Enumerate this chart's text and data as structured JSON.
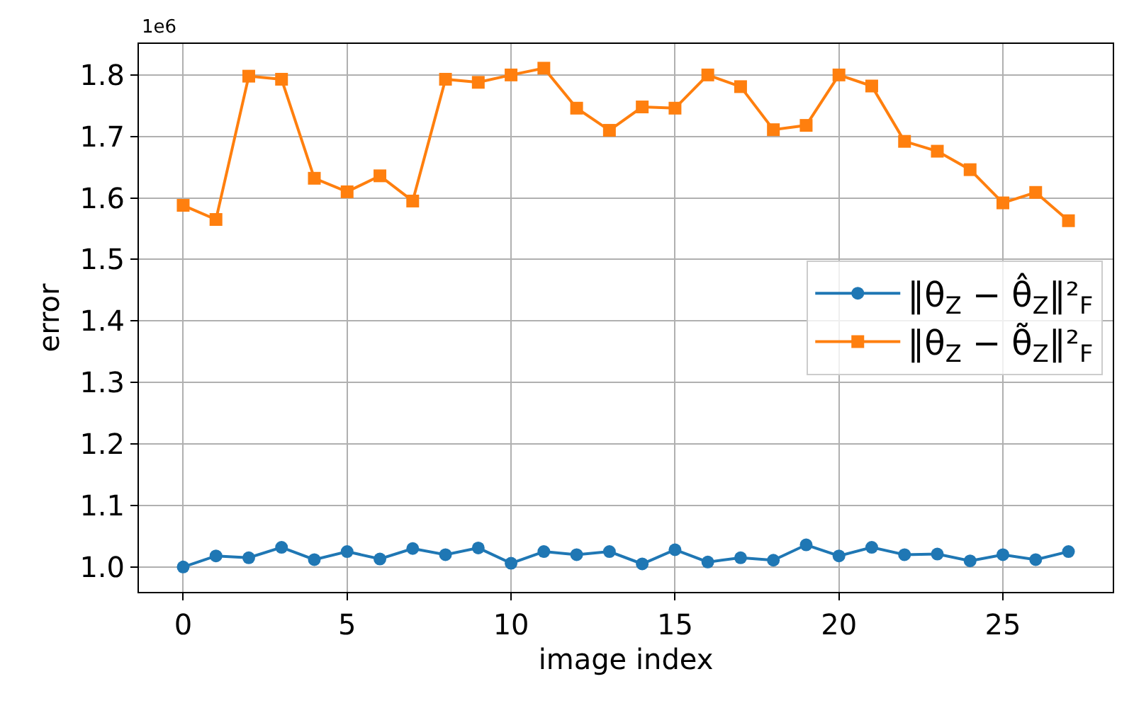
{
  "chart_data": {
    "type": "line",
    "xlabel": "image index",
    "ylabel": "error",
    "annotations": [
      "1e6"
    ],
    "x": [
      0,
      1,
      2,
      3,
      4,
      5,
      6,
      7,
      8,
      9,
      10,
      11,
      12,
      13,
      14,
      15,
      16,
      17,
      18,
      19,
      20,
      21,
      22,
      23,
      24,
      25,
      26,
      27
    ],
    "series": [
      {
        "name": "‖θ$_{Z}$ − θ̂$_{Z}$‖²$_{F}$",
        "color": "#1f77b4",
        "marker": "circle",
        "values": [
          1.0,
          1.018,
          1.015,
          1.032,
          1.012,
          1.025,
          1.013,
          1.03,
          1.02,
          1.031,
          1.006,
          1.025,
          1.02,
          1.025,
          1.005,
          1.028,
          1.008,
          1.015,
          1.011,
          1.036,
          1.018,
          1.032,
          1.02,
          1.021,
          1.01,
          1.02,
          1.012,
          1.025
        ]
      },
      {
        "name": "‖θ$_{Z}$ − θ̃$_{Z}$‖²$_{F}$",
        "color": "#ff7f0e",
        "marker": "square",
        "values": [
          1.588,
          1.565,
          1.798,
          1.793,
          1.632,
          1.61,
          1.636,
          1.595,
          1.793,
          1.788,
          1.8,
          1.811,
          1.746,
          1.71,
          1.748,
          1.746,
          1.8,
          1.781,
          1.711,
          1.718,
          1.8,
          1.782,
          1.692,
          1.676,
          1.646,
          1.592,
          1.609,
          1.563
        ]
      }
    ],
    "xlim": [
      -1.35,
      28.35
    ],
    "xticks": [
      0,
      5,
      10,
      15,
      20,
      25
    ],
    "ylim": [
      0.9595,
      1.8505
    ],
    "yticks": [
      {
        "value": 1,
        "label": "1.0"
      },
      1.1,
      1.2,
      1.3,
      1.4,
      1.5,
      1.6,
      1.7,
      1.8
    ],
    "grid": true,
    "legend": "right",
    "line_style": "solid"
  }
}
